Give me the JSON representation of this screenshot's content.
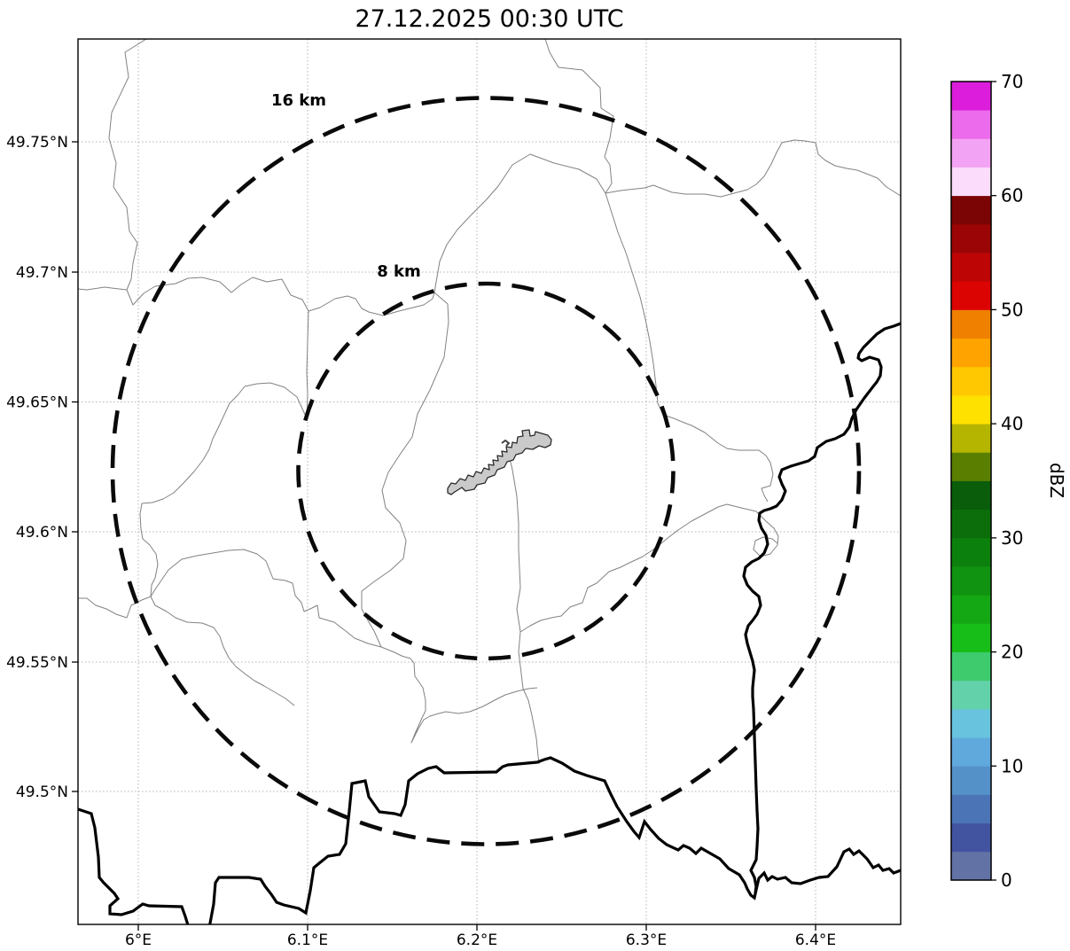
{
  "title": "27.12.2025 00:30 UTC",
  "map": {
    "lat_ticks": [
      "49.75°N",
      "49.7°N",
      "49.65°N",
      "49.6°N",
      "49.55°N",
      "49.5°N"
    ],
    "lon_ticks": [
      "6°E",
      "6.1°E",
      "6.2°E",
      "6.3°E",
      "6.4°E"
    ],
    "range_rings": {
      "outer_label": "16 km",
      "inner_label": "8 km"
    }
  },
  "colorbar": {
    "label": "dBZ",
    "tick_labels": [
      "0",
      "10",
      "20",
      "30",
      "40",
      "50",
      "60",
      "70"
    ],
    "min": 0,
    "max": 70,
    "step": 2.5,
    "colors_bottom_to_top": [
      "#6372A5",
      "#4254A0",
      "#4A74B6",
      "#5491C9",
      "#60A9DC",
      "#67C3DE",
      "#63D1A9",
      "#3DCB6E",
      "#17BE17",
      "#14A814",
      "#109310",
      "#0C800C",
      "#0B6E0B",
      "#0A5D0A",
      "#5A7F00",
      "#B5B500",
      "#FFE100",
      "#FFC800",
      "#FFA300",
      "#F08000",
      "#DC0303",
      "#BE0505",
      "#9B0505",
      "#7B0404",
      "#FBDCFB",
      "#F3A3F3",
      "#EC6BEC",
      "#DC1EDC"
    ]
  }
}
